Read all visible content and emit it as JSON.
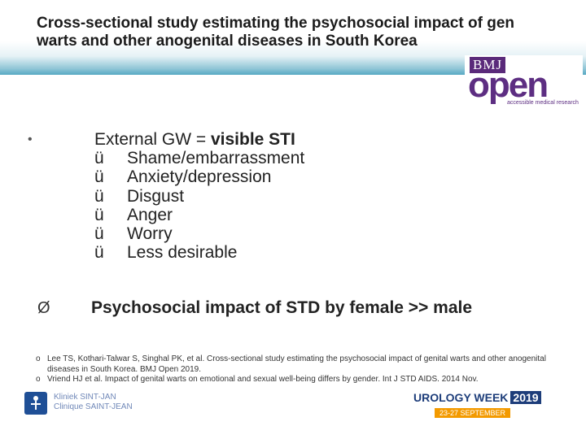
{
  "slide": {
    "title_line1": "Cross-sectional study estimating the psychosocial impact of gen",
    "title_line2": "warts and other anogenital diseases in South Korea",
    "bullet_symbol": "•",
    "main_prefix": "External GW = ",
    "main_bold": "visible STI",
    "check_symbol": "ü",
    "checks": [
      "Shame/embarrassment",
      "Anxiety/depression",
      "Disgust",
      "Anger",
      "Worry",
      "Less desirable"
    ],
    "arrow_symbol": "Ø",
    "key_point": "Psychosocial impact of STD by female >> male",
    "ref_symbol": "o",
    "ref1": "Lee TS, Kothari-Talwar S, Singhal PK, et al. Cross-sectional study estimating the psychosocial impact of genital warts and other anogenital diseases in South Korea. BMJ Open 2019.",
    "ref2": "Vriend HJ et al. Impact of genital warts on emotional and sexual well-being differs by gender. Int J STD AIDS. 2014 Nov."
  },
  "logos": {
    "bmj_top": "BMJ",
    "bmj_open": "open",
    "bmj_tagline": "accessible medical research",
    "klinik_line1": "Kliniek SINT-JAN",
    "klinik_line2": "Clinique SAINT-JEAN",
    "uro_top": "UROLOGY WEEK",
    "uro_year": "2019",
    "uro_dates": "23-27 SEPTEMBER"
  }
}
